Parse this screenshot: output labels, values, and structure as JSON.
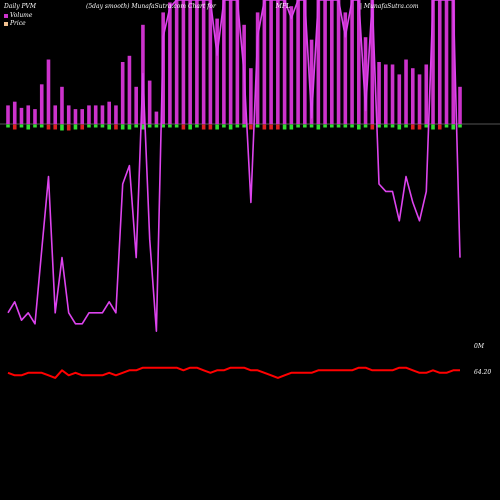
{
  "header": {
    "left": "Daily PVM",
    "middle": "(5day smooth) MunafaSutra.com Chart for",
    "ticker": "MFL",
    "right": "| MunafaSutra.com"
  },
  "legend": {
    "volume": "Volume",
    "price": "Price"
  },
  "right_labels": {
    "volume": "0M",
    "price": "64.20"
  },
  "colors": {
    "background": "#000000",
    "volume_bar": "#cc33cc",
    "volume_line": "#dd44ee",
    "price_line": "#ff0000",
    "pos_bar": "#33dd33",
    "neg_bar": "#dd2222",
    "baseline": "#aaaaaa",
    "volume_swatch": "#cc33cc",
    "price_swatch": "#f0c090"
  },
  "chart_data": {
    "type": "line",
    "series": [
      {
        "name": "Volume",
        "values": [
          15,
          18,
          13,
          15,
          12,
          32,
          52,
          15,
          30,
          15,
          12,
          12,
          15,
          15,
          15,
          18,
          15,
          50,
          55,
          30,
          80,
          35,
          10,
          90,
          98,
          100,
          100,
          100,
          100,
          100,
          100,
          85,
          100,
          100,
          100,
          80,
          45,
          90,
          100,
          100,
          100,
          100,
          95,
          100,
          100,
          68,
          100,
          100,
          100,
          100,
          90,
          100,
          100,
          70,
          100,
          50,
          48,
          48,
          40,
          52,
          45,
          40,
          48,
          100,
          100,
          100,
          100,
          30
        ]
      },
      {
        "name": "Price",
        "values": [
          41,
          40,
          40,
          41,
          41,
          41,
          40,
          39,
          42,
          40,
          41,
          40,
          40,
          40,
          40,
          41,
          40,
          41,
          42,
          42,
          43,
          43,
          43,
          43,
          43,
          43,
          42,
          43,
          43,
          42,
          41,
          42,
          42,
          43,
          43,
          43,
          42,
          42,
          41,
          40,
          39,
          40,
          41,
          41,
          41,
          41,
          42,
          42,
          42,
          42,
          42,
          42,
          43,
          43,
          42,
          42,
          42,
          42,
          43,
          43,
          42,
          41,
          41,
          42,
          41,
          41,
          42,
          42
        ]
      }
    ]
  }
}
